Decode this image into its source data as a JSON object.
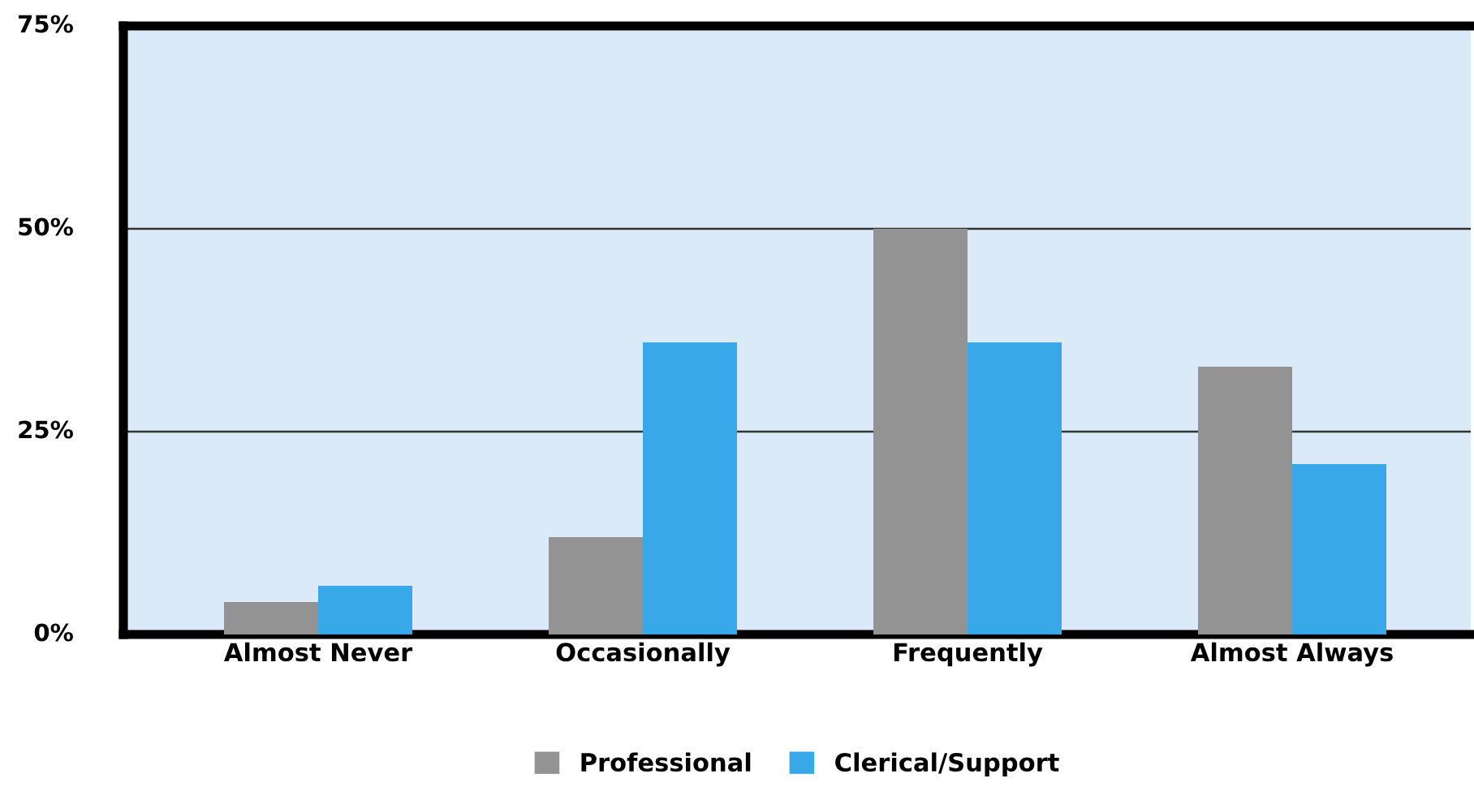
{
  "chart_data": {
    "type": "bar",
    "categories": [
      "Almost Never",
      "Occasionally",
      "Frequently",
      "Almost Always"
    ],
    "series": [
      {
        "name": "Professional",
        "color": "#939393",
        "values": [
          4,
          12,
          50,
          33
        ]
      },
      {
        "name": "Clerical/Support",
        "color": "#38a8e8",
        "values": [
          6,
          36,
          36,
          21
        ]
      }
    ],
    "ylim": [
      0,
      75
    ],
    "yticks": [
      {
        "value": 0,
        "label": "0%"
      },
      {
        "value": 25,
        "label": "25%"
      },
      {
        "value": 50,
        "label": "50%"
      },
      {
        "value": 75,
        "label": "75%"
      }
    ],
    "grid": "y",
    "legend": "bottom"
  }
}
